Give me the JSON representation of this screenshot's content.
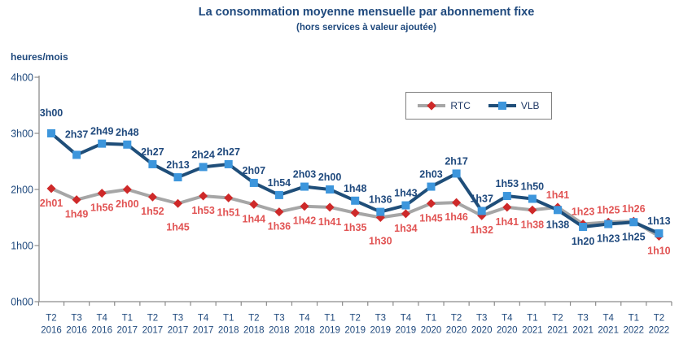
{
  "chart_data": {
    "type": "line",
    "title": "La consommation moyenne mensuelle par abonnement fixe",
    "subtitle": "(hors services à valeur ajoutée)",
    "y_axis_label": "heures/mois",
    "y_ticks": [
      "4h00",
      "3h00",
      "2h00",
      "1h00",
      "0h00"
    ],
    "ylim": [
      "0h00",
      "4h00"
    ],
    "grid": false,
    "legend_position": "top-right",
    "categories": [
      "T2 2016",
      "T3 2016",
      "T4 2016",
      "T1 2017",
      "T2 2017",
      "T3 2017",
      "T4 2017",
      "T1 2018",
      "T2 2018",
      "T3 2018",
      "T4 2018",
      "T1 2019",
      "T2 2019",
      "T3 2019",
      "T4 2019",
      "T1 2020",
      "T2 2020",
      "T3 2020",
      "T4 2020",
      "T1 2021",
      "T2 2021",
      "T3 2021",
      "T4 2021",
      "T1 2022",
      "T2 2022"
    ],
    "series": [
      {
        "name": "RTC",
        "marker": "diamond",
        "color_line": "#A6A6A6",
        "color_marker": "#CE2929",
        "color_label": "#E15454",
        "values": [
          "2h01",
          "1h49",
          "1h56",
          "2h00",
          "1h52",
          "1h45",
          "1h53",
          "1h51",
          "1h44",
          "1h36",
          "1h42",
          "1h41",
          "1h35",
          "1h30",
          "1h34",
          "1h45",
          "1h46",
          "1h32",
          "1h41",
          "1h38",
          "1h41",
          "1h23",
          "1h25",
          "1h26",
          "1h10"
        ],
        "label_sides": [
          "below",
          "below",
          "below",
          "below",
          "below",
          "below-far",
          "below",
          "below",
          "below",
          "below",
          "below",
          "below",
          "below",
          "below-far",
          "below",
          "below",
          "below",
          "below",
          "below",
          "below",
          "above",
          "above",
          "above",
          "above",
          "below"
        ]
      },
      {
        "name": "VLB",
        "marker": "square",
        "color_line": "#1F4E79",
        "color_marker": "#3D96DC",
        "color_label": "#1F497D",
        "values": [
          "3h00",
          "2h37",
          "2h49",
          "2h48",
          "2h27",
          "2h13",
          "2h24",
          "2h27",
          "2h07",
          "1h54",
          "2h03",
          "2h00",
          "1h48",
          "1h36",
          "1h43",
          "2h03",
          "2h17",
          "1h37",
          "1h53",
          "1h50",
          "1h38",
          "1h20",
          "1h23",
          "1h25",
          "1h13"
        ],
        "label_sides": [
          "above-far",
          "above-far",
          "above",
          "above",
          "above",
          "above",
          "above",
          "above",
          "above",
          "above",
          "above",
          "above",
          "above",
          "above",
          "above",
          "above",
          "above",
          "above",
          "above",
          "above",
          "below",
          "below",
          "below",
          "below",
          "above"
        ]
      }
    ],
    "colors": {
      "axis": "#8C8C8C",
      "tick_text": "#1F497D",
      "title_text": "#1F497D"
    }
  }
}
